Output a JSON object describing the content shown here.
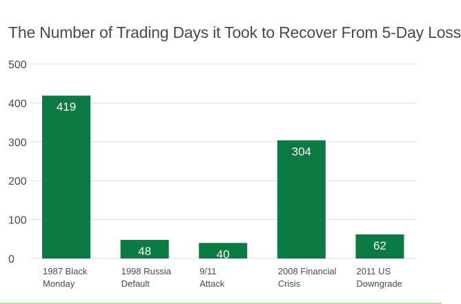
{
  "chart_data": {
    "type": "bar",
    "title": "The Number of Trading Days it Took to Recover From 5-Day Loss",
    "categories": [
      [
        "1987 Black",
        "Monday"
      ],
      [
        "1998 Russia",
        "Default"
      ],
      [
        "9/11",
        "Attack"
      ],
      [
        "2008 Financial",
        "Crisis"
      ],
      [
        "2011 US",
        "Downgrade"
      ]
    ],
    "values": [
      419,
      48,
      40,
      304,
      62
    ],
    "value_labels": [
      "419",
      "48",
      "40",
      "304",
      "62"
    ],
    "ylim": [
      0,
      500
    ],
    "yticks": [
      0,
      100,
      200,
      300,
      400,
      500
    ],
    "ytick_labels": [
      "0",
      "100",
      "200",
      "300",
      "400",
      "500"
    ],
    "xlabel": "",
    "ylabel": "",
    "grid": true,
    "colors": {
      "bar": "#0c7a43",
      "bar_label": "#ffffff",
      "grid": "#dcdcdc",
      "axis_text": "#4a4a4a"
    }
  }
}
